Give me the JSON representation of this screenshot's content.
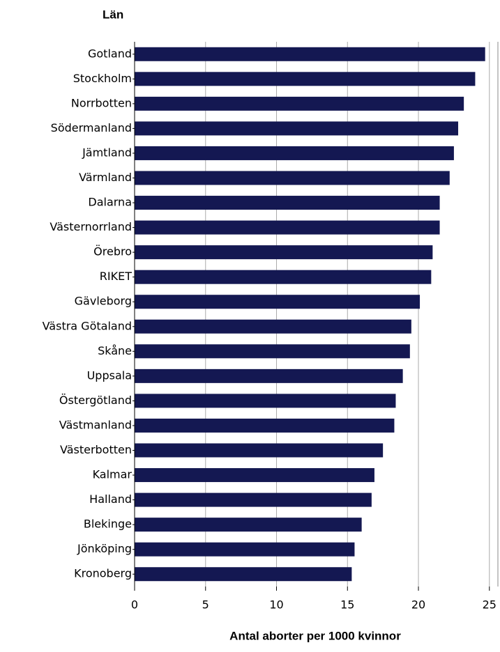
{
  "chart_data": {
    "type": "bar",
    "orientation": "horizontal",
    "y_axis_title": "Län",
    "x_axis_title": "Antal aborter per 1000 kvinnor",
    "categories": [
      "Gotland",
      "Stockholm",
      "Norrbotten",
      "Södermanland",
      "Jämtland",
      "Värmland",
      "Dalarna",
      "Västernorrland",
      "Örebro",
      "RIKET",
      "Gävleborg",
      "Västra Götaland",
      "Skåne",
      "Uppsala",
      "Östergötland",
      "Västmanland",
      "Västerbotten",
      "Kalmar",
      "Halland",
      "Blekinge",
      "Jönköping",
      "Kronoberg"
    ],
    "values": [
      24.7,
      24.0,
      23.2,
      22.8,
      22.5,
      22.2,
      21.5,
      21.5,
      21.0,
      20.9,
      20.1,
      19.5,
      19.4,
      18.9,
      18.4,
      18.3,
      17.5,
      16.9,
      16.7,
      16.0,
      15.5,
      15.3
    ],
    "color": "#141852",
    "xlim": [
      0,
      25.6
    ],
    "xticks": [
      0,
      5,
      10,
      15,
      20,
      25
    ],
    "grid": true
  }
}
